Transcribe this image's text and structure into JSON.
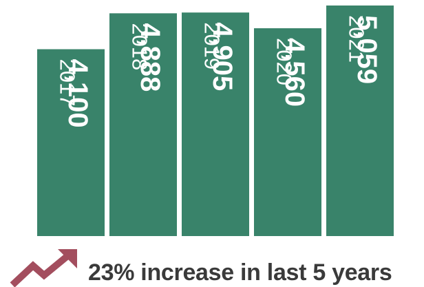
{
  "chart_data": {
    "type": "bar",
    "categories": [
      "2017",
      "2018",
      "2019",
      "2020",
      "2021"
    ],
    "values": [
      4100,
      4888,
      4905,
      4560,
      5059
    ],
    "value_labels": [
      "4,100",
      "4,888",
      "4,905",
      "4,560",
      "5,059"
    ],
    "title": "",
    "xlabel": "",
    "ylabel": "",
    "ylim": [
      0,
      5059
    ],
    "grid": false,
    "legend": "none"
  },
  "colors": {
    "bar": "#39836A",
    "bar_text": "#ffffff",
    "icon": "#A34E5E",
    "caption": "#3a3a3a"
  },
  "footer": {
    "icon": "trend-up-arrow-icon",
    "caption": "23% increase in last 5 years"
  }
}
